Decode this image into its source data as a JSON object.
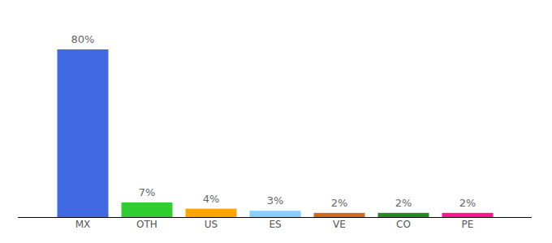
{
  "chart_data": {
    "type": "bar",
    "categories": [
      "MX",
      "OTH",
      "US",
      "ES",
      "VE",
      "CO",
      "PE"
    ],
    "values": [
      80,
      7,
      4,
      3,
      2,
      2,
      2
    ],
    "value_labels": [
      "80%",
      "7%",
      "4%",
      "3%",
      "2%",
      "2%",
      "2%"
    ],
    "colors": [
      "#4169e1",
      "#32cd32",
      "#ffa500",
      "#87cefa",
      "#d2691e",
      "#228b22",
      "#ff1493"
    ],
    "data_labels": true,
    "tick_labels": "x"
  }
}
